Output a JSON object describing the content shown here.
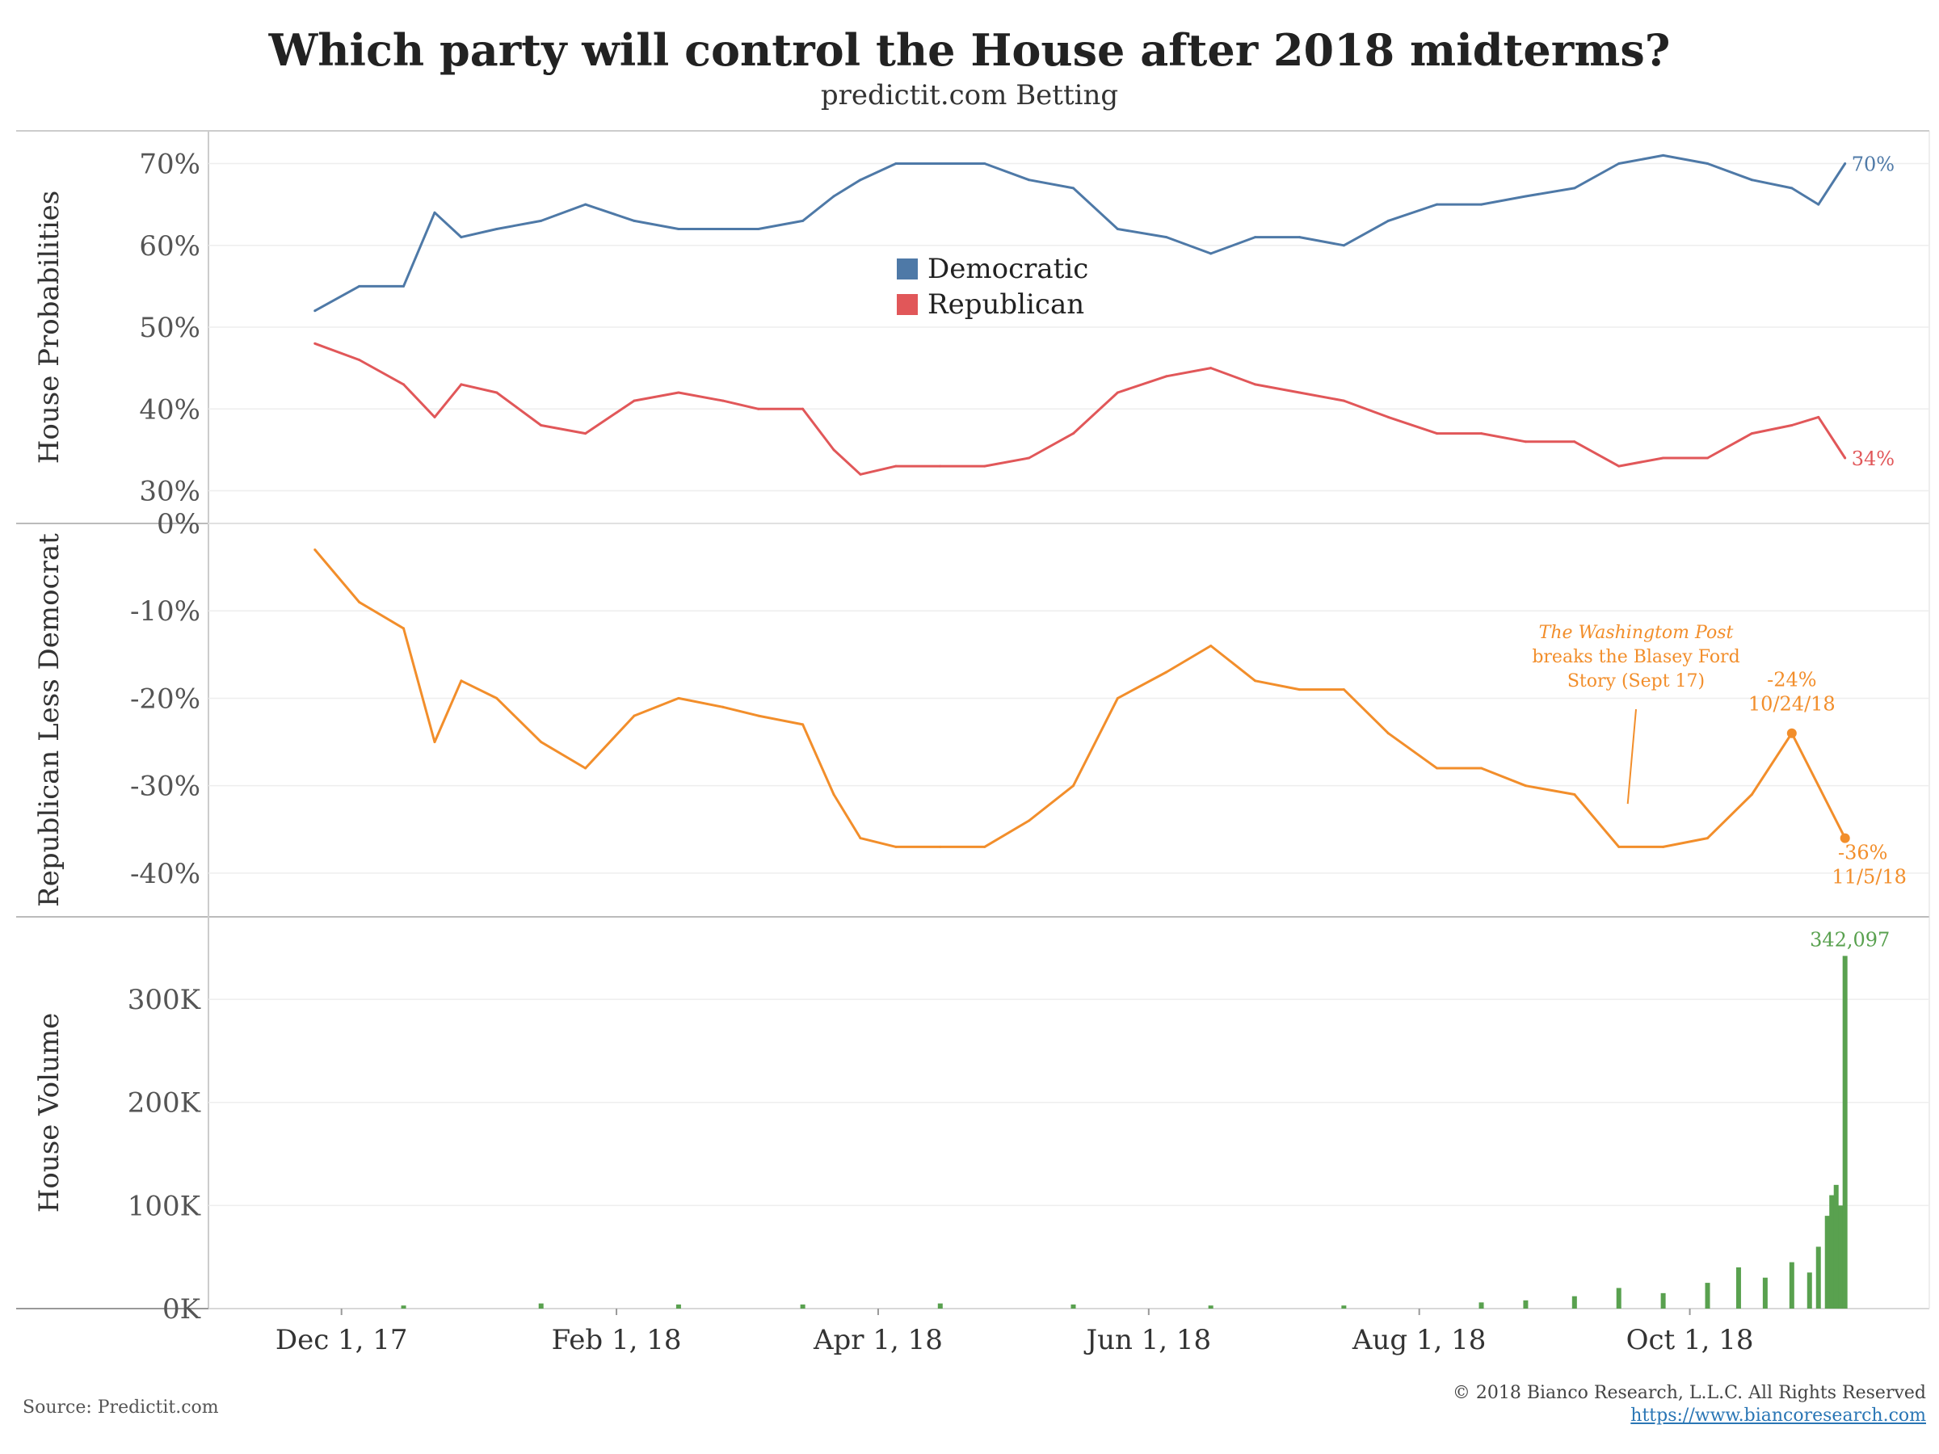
{
  "header": {
    "title": "Which party will control the House after 2018 midterms?",
    "subtitle": "predictit.com Betting"
  },
  "footer": {
    "source": "Source: Predictit.com",
    "copyright": "© 2018 Bianco Research, L.L.C. All Rights Reserved",
    "website": "https://www.biancoresearch.com"
  },
  "colors": {
    "democratic": "#4e79a7",
    "republican": "#e15759",
    "spread": "#f28e2b",
    "volume": "#59a14f"
  },
  "x_axis": {
    "tick_labels": [
      "Dec 1, 17",
      "Feb 1, 18",
      "Apr 1, 18",
      "Jun 1, 18",
      "Aug 1, 18",
      "Oct 1, 18"
    ],
    "tick_dates": [
      "2017-12-01",
      "2018-02-01",
      "2018-04-01",
      "2018-06-01",
      "2018-08-01",
      "2018-10-01"
    ]
  },
  "chart_data": [
    {
      "type": "line",
      "ylabel": "House Probabilities",
      "ylim": [
        0.26,
        0.74
      ],
      "yticks": [
        0.3,
        0.4,
        0.5,
        0.6,
        0.7
      ],
      "ytick_labels": [
        "30%",
        "40%",
        "50%",
        "60%",
        "70%"
      ],
      "legend": {
        "position": "center",
        "entries": [
          "Democratic",
          "Republican"
        ]
      },
      "x": [
        "2017-11-25",
        "2017-12-05",
        "2017-12-15",
        "2017-12-22",
        "2017-12-28",
        "2018-01-05",
        "2018-01-15",
        "2018-01-25",
        "2018-02-05",
        "2018-02-15",
        "2018-02-25",
        "2018-03-05",
        "2018-03-15",
        "2018-03-22",
        "2018-03-28",
        "2018-04-05",
        "2018-04-15",
        "2018-04-25",
        "2018-05-05",
        "2018-05-15",
        "2018-05-25",
        "2018-06-05",
        "2018-06-15",
        "2018-06-25",
        "2018-07-05",
        "2018-07-15",
        "2018-07-25",
        "2018-08-05",
        "2018-08-15",
        "2018-08-25",
        "2018-09-05",
        "2018-09-15",
        "2018-09-25",
        "2018-10-05",
        "2018-10-15",
        "2018-10-24",
        "2018-10-30",
        "2018-11-05"
      ],
      "series": [
        {
          "name": "Democratic",
          "end_label": "70%",
          "values": [
            0.52,
            0.55,
            0.55,
            0.64,
            0.61,
            0.62,
            0.63,
            0.65,
            0.63,
            0.62,
            0.62,
            0.62,
            0.63,
            0.66,
            0.68,
            0.7,
            0.7,
            0.7,
            0.68,
            0.67,
            0.62,
            0.61,
            0.59,
            0.61,
            0.61,
            0.6,
            0.63,
            0.65,
            0.65,
            0.66,
            0.67,
            0.7,
            0.71,
            0.7,
            0.68,
            0.67,
            0.65,
            0.7
          ]
        },
        {
          "name": "Republican",
          "end_label": "34%",
          "values": [
            0.48,
            0.46,
            0.43,
            0.39,
            0.43,
            0.42,
            0.38,
            0.37,
            0.41,
            0.42,
            0.41,
            0.4,
            0.4,
            0.35,
            0.32,
            0.33,
            0.33,
            0.33,
            0.34,
            0.37,
            0.42,
            0.44,
            0.45,
            0.43,
            0.42,
            0.41,
            0.39,
            0.37,
            0.37,
            0.36,
            0.36,
            0.33,
            0.34,
            0.34,
            0.37,
            0.38,
            0.39,
            0.34
          ]
        }
      ]
    },
    {
      "type": "line",
      "ylabel": "Republican Less Democrat",
      "ylim": [
        -0.45,
        0.0
      ],
      "yticks": [
        0.0,
        -0.1,
        -0.2,
        -0.3,
        -0.4
      ],
      "ytick_labels": [
        "0%",
        "-10%",
        "-20%",
        "-30%",
        "-40%"
      ],
      "x": [
        "2017-11-25",
        "2017-12-05",
        "2017-12-15",
        "2017-12-22",
        "2017-12-28",
        "2018-01-05",
        "2018-01-15",
        "2018-01-25",
        "2018-02-05",
        "2018-02-15",
        "2018-02-25",
        "2018-03-05",
        "2018-03-15",
        "2018-03-22",
        "2018-03-28",
        "2018-04-05",
        "2018-04-15",
        "2018-04-25",
        "2018-05-05",
        "2018-05-15",
        "2018-05-25",
        "2018-06-05",
        "2018-06-15",
        "2018-06-25",
        "2018-07-05",
        "2018-07-15",
        "2018-07-25",
        "2018-08-05",
        "2018-08-15",
        "2018-08-25",
        "2018-09-05",
        "2018-09-15",
        "2018-09-25",
        "2018-10-05",
        "2018-10-15",
        "2018-10-24",
        "2018-10-30",
        "2018-11-05"
      ],
      "series": [
        {
          "name": "Republican Less Democrat",
          "values": [
            -0.03,
            -0.09,
            -0.12,
            -0.25,
            -0.18,
            -0.2,
            -0.25,
            -0.28,
            -0.22,
            -0.2,
            -0.21,
            -0.22,
            -0.23,
            -0.31,
            -0.36,
            -0.37,
            -0.37,
            -0.37,
            -0.34,
            -0.3,
            -0.2,
            -0.17,
            -0.14,
            -0.18,
            -0.19,
            -0.19,
            -0.24,
            -0.28,
            -0.28,
            -0.3,
            -0.31,
            -0.37,
            -0.37,
            -0.36,
            -0.31,
            -0.24,
            -0.3,
            -0.36
          ]
        }
      ],
      "annotations": [
        {
          "italic": "The Washingtom Post",
          "text": "breaks the Blasey Ford",
          "text2": "Story (Sept 17)",
          "x": "2018-09-17",
          "y": -0.33
        },
        {
          "value_label": "-24%",
          "date_label": "10/24/18",
          "x": "2018-10-24",
          "y": -0.24
        },
        {
          "value_label": "-36%",
          "date_label": "11/5/18",
          "x": "2018-11-05",
          "y": -0.36
        }
      ]
    },
    {
      "type": "bar",
      "ylabel": "House Volume",
      "ylim": [
        0,
        380000
      ],
      "yticks": [
        0,
        100000,
        200000,
        300000
      ],
      "ytick_labels": [
        "0K",
        "100K",
        "200K",
        "300K"
      ],
      "x": [
        "2017-12-15",
        "2018-01-15",
        "2018-02-15",
        "2018-03-15",
        "2018-04-15",
        "2018-05-15",
        "2018-06-15",
        "2018-07-15",
        "2018-08-15",
        "2018-08-25",
        "2018-09-05",
        "2018-09-15",
        "2018-09-25",
        "2018-10-05",
        "2018-10-12",
        "2018-10-18",
        "2018-10-24",
        "2018-10-28",
        "2018-10-30",
        "2018-11-01",
        "2018-11-02",
        "2018-11-03",
        "2018-11-04",
        "2018-11-05"
      ],
      "series": [
        {
          "name": "House Volume",
          "values": [
            3000,
            5000,
            4000,
            4000,
            5000,
            4000,
            3000,
            3000,
            6000,
            8000,
            12000,
            20000,
            15000,
            25000,
            40000,
            30000,
            45000,
            35000,
            60000,
            90000,
            110000,
            120000,
            100000,
            342097
          ],
          "peak_label": "342,097"
        }
      ]
    }
  ]
}
